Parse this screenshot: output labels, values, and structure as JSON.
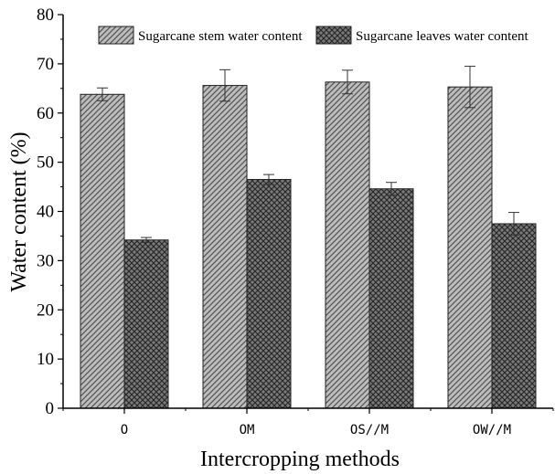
{
  "chart_data": {
    "type": "bar",
    "categories": [
      "O",
      "OM",
      "OS//M",
      "OW//M"
    ],
    "series": [
      {
        "name": "Sugarcane stem water content",
        "values": [
          63.8,
          65.6,
          66.3,
          65.3
        ],
        "errors": [
          1.3,
          3.2,
          2.4,
          4.2
        ],
        "fill": "#b3b3b3",
        "pattern": "diagonal-hatch"
      },
      {
        "name": "Sugarcane leaves water content",
        "values": [
          34.2,
          46.5,
          44.6,
          37.5
        ],
        "errors": [
          0.5,
          1.0,
          1.3,
          2.3
        ],
        "fill": "#5a5a5a",
        "pattern": "cross-hatch"
      }
    ],
    "title": "",
    "xlabel": "Intercropping methods",
    "ylabel": "Water content (%)",
    "ylim": [
      0,
      80
    ],
    "yticks": [
      0,
      10,
      20,
      30,
      40,
      50,
      60,
      70,
      80
    ],
    "grid": false,
    "legend_position": "top"
  }
}
